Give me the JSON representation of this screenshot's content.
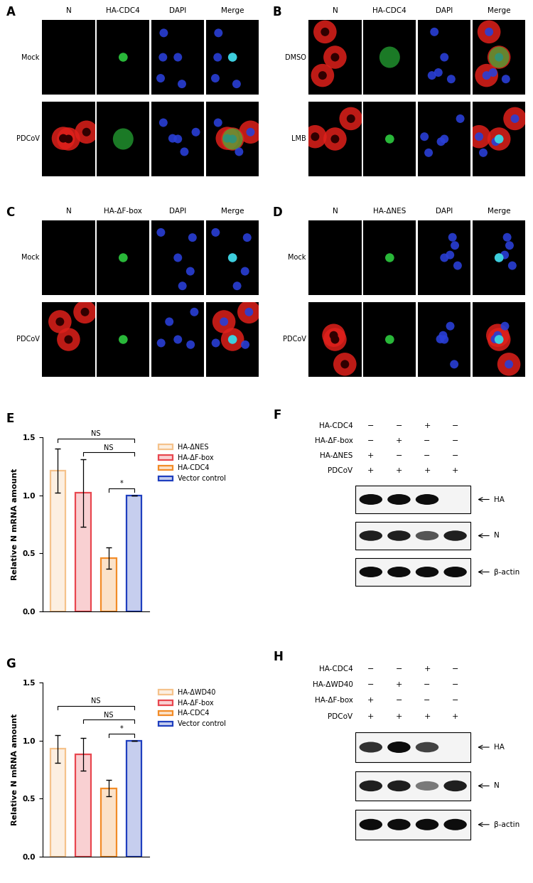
{
  "microscopy": [
    {
      "panel": "A",
      "columns": [
        "N",
        "HA-CDC4",
        "DAPI",
        "Merge"
      ],
      "rows": [
        "Mock",
        "PDCoV"
      ]
    },
    {
      "panel": "B",
      "columns": [
        "N",
        "HA-CDC4",
        "DAPI",
        "Merge"
      ],
      "rows": [
        "DMSO",
        "LMB"
      ]
    },
    {
      "panel": "C",
      "columns": [
        "N",
        "HA-ΔF-box",
        "DAPI",
        "Merge"
      ],
      "rows": [
        "Mock",
        "PDCoV"
      ]
    },
    {
      "panel": "D",
      "columns": [
        "N",
        "HA-ΔNES",
        "DAPI",
        "Merge"
      ],
      "rows": [
        "Mock",
        "PDCoV"
      ]
    }
  ],
  "chart_data": [
    {
      "panel": "E",
      "type": "bar",
      "y_label": "Relative N mRNA amount",
      "categories": [
        "HA-ΔNES",
        "HA-ΔF-box",
        "HA-CDC4",
        "Vector control"
      ],
      "values": [
        1.21,
        1.02,
        0.46,
        1.0
      ],
      "errors": [
        0.19,
        0.29,
        0.09,
        0.0
      ],
      "colors": [
        "#f5c28b",
        "#e8474f",
        "#f28c28",
        "#1f3fbf"
      ],
      "ylim": [
        0,
        1.5
      ],
      "yticks": [
        {
          "value": 0.0,
          "label": "0.0"
        },
        {
          "value": 0.5,
          "label": "0.5"
        },
        {
          "value": 1.0,
          "label": "1.0"
        },
        {
          "value": 1.5,
          "label": "1.5"
        }
      ],
      "grid": false,
      "legend": "upper left",
      "tick_labels": "y",
      "annotations": [
        {
          "text": "*",
          "from": "HA-CDC4",
          "to": "Vector control"
        },
        {
          "text": "NS",
          "from": "HA-ΔF-box",
          "to": "Vector control"
        },
        {
          "text": "NS",
          "from": "HA-ΔNES",
          "to": "Vector control"
        }
      ]
    },
    {
      "panel": "G",
      "type": "bar",
      "y_label": "Relative N mRNA amount",
      "categories": [
        "HA-ΔWD40",
        "HA-ΔF-box",
        "HA-CDC4",
        "Vector control"
      ],
      "values": [
        0.93,
        0.88,
        0.59,
        1.0
      ],
      "errors": [
        0.12,
        0.14,
        0.07,
        0.0
      ],
      "colors": [
        "#f5c28b",
        "#e8474f",
        "#f28c28",
        "#1f3fbf"
      ],
      "ylim": [
        0,
        1.5
      ],
      "yticks": [
        {
          "value": 0.0,
          "label": "0.0"
        },
        {
          "value": 0.5,
          "label": "0.5"
        },
        {
          "value": 1.0,
          "label": "1.0"
        },
        {
          "value": 1.5,
          "label": "1.5"
        }
      ],
      "grid": false,
      "legend": "upper left",
      "tick_labels": "y",
      "annotations": [
        {
          "text": "*",
          "from": "HA-CDC4",
          "to": "Vector control"
        },
        {
          "text": "NS",
          "from": "HA-ΔF-box",
          "to": "Vector control"
        },
        {
          "text": "NS",
          "from": "HA-ΔWD40",
          "to": "Vector control"
        }
      ]
    }
  ],
  "blots": [
    {
      "panel": "F",
      "conditions": [
        {
          "label": "HA-CDC4",
          "signs": [
            "−",
            "−",
            "+",
            "−"
          ]
        },
        {
          "label": "HA-ΔF-box",
          "signs": [
            "−",
            "+",
            "−",
            "−"
          ]
        },
        {
          "label": "HA-ΔNES",
          "signs": [
            "+",
            "−",
            "−",
            "−"
          ]
        },
        {
          "label": "PDCoV",
          "signs": [
            "+",
            "+",
            "+",
            "+"
          ]
        }
      ],
      "bands": [
        {
          "label": "HA",
          "intensity": [
            1,
            1,
            1,
            0
          ]
        },
        {
          "label": "N",
          "intensity": [
            0.9,
            0.9,
            0.6,
            0.9
          ]
        },
        {
          "label": "β-actin",
          "intensity": [
            1,
            1,
            1,
            1
          ]
        }
      ]
    },
    {
      "panel": "H",
      "conditions": [
        {
          "label": "HA-CDC4",
          "signs": [
            "−",
            "−",
            "+",
            "−"
          ]
        },
        {
          "label": "HA-ΔWD40",
          "signs": [
            "−",
            "+",
            "−",
            "−"
          ]
        },
        {
          "label": "HA-ΔF-box",
          "signs": [
            "+",
            "−",
            "−",
            "−"
          ]
        },
        {
          "label": "PDCoV",
          "signs": [
            "+",
            "+",
            "+",
            "+"
          ]
        }
      ],
      "bands": [
        {
          "label": "HA",
          "intensity": [
            0.8,
            1,
            0.7,
            0
          ]
        },
        {
          "label": "N",
          "intensity": [
            0.9,
            0.9,
            0.4,
            0.9
          ]
        },
        {
          "label": "β-actin",
          "intensity": [
            1,
            1,
            1,
            1
          ]
        }
      ]
    }
  ]
}
